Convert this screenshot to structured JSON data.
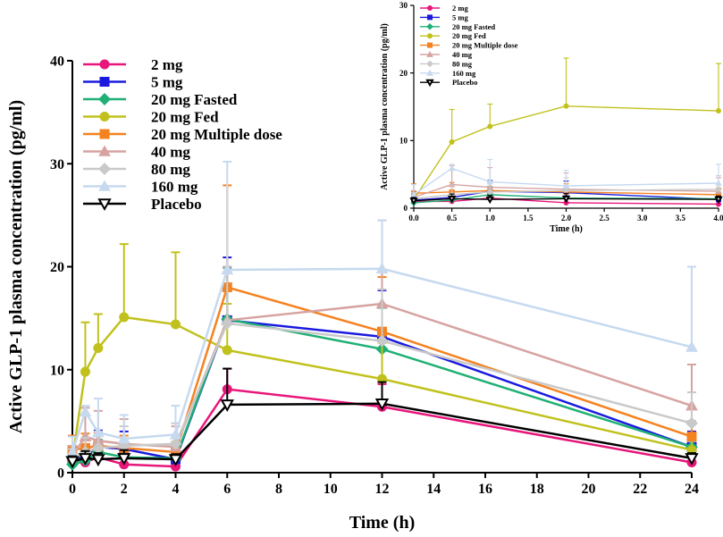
{
  "chart_data": [
    {
      "type": "line",
      "panel": "main",
      "xlabel": "Time (h)",
      "ylabel": "Active GLP-1 plasma concentration (pg/ml)",
      "xlim": [
        0,
        24
      ],
      "ylim": [
        0,
        40
      ],
      "xticks": [
        0,
        2,
        4,
        6,
        8,
        10,
        12,
        14,
        16,
        18,
        20,
        22,
        24
      ],
      "yticks": [
        0,
        10,
        20,
        30,
        40
      ],
      "legend_position": "top-left",
      "series": [
        {
          "name": "2 mg",
          "color": "#e8157a",
          "marker": "circle",
          "x": [
            0,
            0.5,
            1,
            2,
            4,
            6,
            12,
            24
          ],
          "y": [
            1.0,
            1.0,
            1.5,
            0.8,
            0.6,
            8.1,
            6.4,
            1.0
          ],
          "err": [
            0.4,
            0.5,
            0.8,
            0.6,
            0.4,
            2.0,
            2.2,
            0.5
          ]
        },
        {
          "name": "5 mg",
          "color": "#1a1adf",
          "marker": "square",
          "x": [
            0,
            0.5,
            1,
            2,
            4,
            6,
            12,
            24
          ],
          "y": [
            1.2,
            1.6,
            2.5,
            2.3,
            1.3,
            14.8,
            13.2,
            2.5
          ],
          "err": [
            0.6,
            1.0,
            1.6,
            1.7,
            1.0,
            6.1,
            4.5,
            1.5
          ]
        },
        {
          "name": "20 mg Fasted",
          "color": "#1fb075",
          "marker": "diamond",
          "x": [
            0,
            0.5,
            1,
            2,
            4,
            6,
            12,
            24
          ],
          "y": [
            0.8,
            1.2,
            2.0,
            1.5,
            1.4,
            14.9,
            12.0,
            2.5
          ],
          "err": [
            0.5,
            0.8,
            1.2,
            1.0,
            0.8,
            5.0,
            4.0,
            1.3
          ]
        },
        {
          "name": "20 mg Fed",
          "color": "#c1c11d",
          "marker": "circle",
          "x": [
            0,
            0.5,
            1,
            2,
            4,
            6,
            12,
            24
          ],
          "y": [
            1.3,
            9.8,
            12.1,
            15.1,
            14.4,
            11.9,
            9.1,
            2.2
          ],
          "err": [
            0.8,
            4.8,
            3.3,
            7.1,
            7.0,
            4.5,
            3.5,
            1.0
          ]
        },
        {
          "name": "20 mg Multiple dose",
          "color": "#f58220",
          "marker": "square",
          "x": [
            0,
            0.5,
            1,
            2,
            4,
            6,
            12,
            24
          ],
          "y": [
            2.2,
            2.4,
            2.6,
            2.4,
            2.0,
            18.0,
            13.7,
            3.5
          ],
          "err": [
            1.4,
            1.4,
            1.3,
            1.2,
            1.0,
            9.9,
            5.3,
            1.5
          ]
        },
        {
          "name": "40 mg",
          "color": "#d6a3a1",
          "marker": "triangle",
          "x": [
            0,
            0.5,
            1,
            2,
            4,
            6,
            12,
            24
          ],
          "y": [
            1.6,
            3.5,
            3.1,
            2.8,
            2.5,
            14.8,
            16.4,
            6.5
          ],
          "err": [
            1.0,
            2.8,
            2.9,
            2.4,
            2.0,
            5.2,
            8.1,
            4.0
          ]
        },
        {
          "name": "80 mg",
          "color": "#c9c9c9",
          "marker": "diamond",
          "x": [
            0,
            0.5,
            1,
            2,
            4,
            6,
            12,
            24
          ],
          "y": [
            1.4,
            2.0,
            2.4,
            2.6,
            2.8,
            14.5,
            12.8,
            4.8
          ],
          "err": [
            0.9,
            1.4,
            1.6,
            1.9,
            2.0,
            5.0,
            5.0,
            3.0
          ]
        },
        {
          "name": "160 mg",
          "color": "#c6d9ef",
          "marker": "triangle",
          "x": [
            0,
            0.5,
            1,
            2,
            4,
            6,
            12,
            24
          ],
          "y": [
            2.0,
            5.9,
            3.9,
            3.3,
            3.7,
            19.7,
            19.8,
            12.2
          ],
          "err": [
            1.5,
            0.6,
            3.3,
            2.3,
            2.8,
            10.5,
            4.7,
            7.8
          ]
        },
        {
          "name": "Placebo",
          "color": "#000000",
          "marker": "triangle-down-open",
          "x": [
            0,
            0.5,
            1,
            2,
            4,
            6,
            12,
            24
          ],
          "y": [
            1.1,
            1.4,
            1.3,
            1.4,
            1.3,
            6.6,
            6.7,
            1.4
          ],
          "err": [
            0.5,
            0.7,
            0.6,
            0.8,
            0.5,
            3.5,
            2.1,
            0.5
          ]
        }
      ]
    },
    {
      "type": "line",
      "panel": "inset",
      "xlabel": "Time (h)",
      "ylabel": "Active GLP-1 plasma concentration (pg/ml)",
      "xlim": [
        0,
        4
      ],
      "ylim": [
        0,
        30
      ],
      "xticks": [
        "0.0",
        "0.5",
        "1.0",
        "1.5",
        "2.0",
        "2.5",
        "3.0",
        "3.5",
        "4.0"
      ],
      "yticks": [
        0,
        10,
        20,
        30
      ],
      "legend_position": "top-left",
      "series_source": "same series as main panel, restricted to 0-4 h"
    }
  ]
}
